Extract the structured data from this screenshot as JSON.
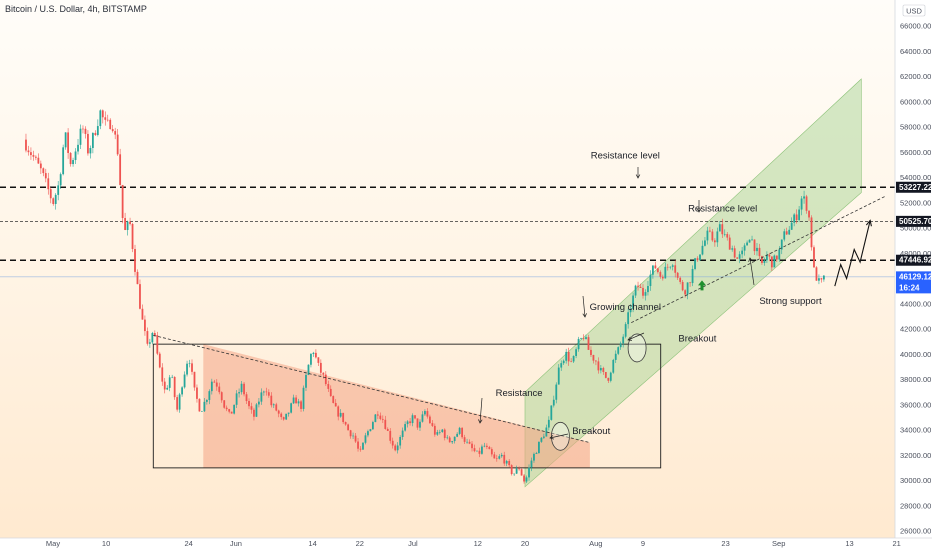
{
  "chart_data": {
    "type": "candlestick",
    "title": "Bitcoin / U.S. Dollar, 4h, BITSTAMP",
    "currency_label": "USD",
    "y_ticks": [
      26000,
      28000,
      30000,
      32000,
      34000,
      36000,
      38000,
      40000,
      42000,
      44000,
      46000,
      48000,
      50000,
      52000,
      54000,
      56000,
      58000,
      60000,
      62000,
      64000,
      66000
    ],
    "ylim": [
      26000,
      67500
    ],
    "x_ticks": [
      {
        "label": "May",
        "day": 0
      },
      {
        "label": "10",
        "day": 9
      },
      {
        "label": "24",
        "day": 23
      },
      {
        "label": "Jun",
        "day": 31
      },
      {
        "label": "14",
        "day": 44
      },
      {
        "label": "22",
        "day": 52
      },
      {
        "label": "Jul",
        "day": 61
      },
      {
        "label": "12",
        "day": 72
      },
      {
        "label": "20",
        "day": 80
      },
      {
        "label": "Aug",
        "day": 92
      },
      {
        "label": "9",
        "day": 100
      },
      {
        "label": "23",
        "day": 114
      },
      {
        "label": "Sep",
        "day": 123
      },
      {
        "label": "13",
        "day": 135
      },
      {
        "label": "21",
        "day": 143
      }
    ],
    "xlim": [
      -5,
      149
    ],
    "price_path": [
      [
        -5,
        57000
      ],
      [
        -2,
        54500
      ],
      [
        0,
        52000
      ],
      [
        1,
        53500
      ],
      [
        2,
        57500
      ],
      [
        3,
        55000
      ],
      [
        4,
        56500
      ],
      [
        5,
        58000
      ],
      [
        6,
        56000
      ],
      [
        7,
        57500
      ],
      [
        8,
        59200
      ],
      [
        9,
        58000
      ],
      [
        10,
        58500
      ],
      [
        11,
        56000
      ],
      [
        12,
        49500
      ],
      [
        13,
        50500
      ],
      [
        14,
        46500
      ],
      [
        15,
        43000
      ],
      [
        16,
        40500
      ],
      [
        17,
        42000
      ],
      [
        18,
        39000
      ],
      [
        19,
        37000
      ],
      [
        20,
        38500
      ],
      [
        21,
        35500
      ],
      [
        22,
        38000
      ],
      [
        23,
        40000
      ],
      [
        24,
        37000
      ],
      [
        25,
        35500
      ],
      [
        26,
        36500
      ],
      [
        27,
        38000
      ],
      [
        28,
        37500
      ],
      [
        29,
        36000
      ],
      [
        30,
        35000
      ],
      [
        31,
        36500
      ],
      [
        32,
        37500
      ],
      [
        33,
        36000
      ],
      [
        34,
        35000
      ],
      [
        35,
        36500
      ],
      [
        36,
        37500
      ],
      [
        37,
        36000
      ],
      [
        38,
        35500
      ],
      [
        39,
        34500
      ],
      [
        40,
        35500
      ],
      [
        41,
        36500
      ],
      [
        42,
        35800
      ],
      [
        43,
        38500
      ],
      [
        44,
        40500
      ],
      [
        45,
        39000
      ],
      [
        46,
        38000
      ],
      [
        47,
        36500
      ],
      [
        48,
        35500
      ],
      [
        49,
        35000
      ],
      [
        50,
        34000
      ],
      [
        51,
        33500
      ],
      [
        52,
        32000
      ],
      [
        53,
        33500
      ],
      [
        54,
        34500
      ],
      [
        55,
        35500
      ],
      [
        56,
        34800
      ],
      [
        57,
        33500
      ],
      [
        58,
        32500
      ],
      [
        59,
        33500
      ],
      [
        60,
        34500
      ],
      [
        61,
        35000
      ],
      [
        62,
        34200
      ],
      [
        63,
        35500
      ],
      [
        64,
        34500
      ],
      [
        65,
        33500
      ],
      [
        66,
        34000
      ],
      [
        67,
        33000
      ],
      [
        68,
        33500
      ],
      [
        69,
        34000
      ],
      [
        70,
        33000
      ],
      [
        71,
        32500
      ],
      [
        72,
        32000
      ],
      [
        73,
        32800
      ],
      [
        74,
        32200
      ],
      [
        75,
        31500
      ],
      [
        76,
        32000
      ],
      [
        77,
        31200
      ],
      [
        78,
        30500
      ],
      [
        79,
        31000
      ],
      [
        80,
        29800
      ],
      [
        81,
        31500
      ],
      [
        82,
        32500
      ],
      [
        83,
        33500
      ],
      [
        84,
        34500
      ],
      [
        85,
        37000
      ],
      [
        86,
        39500
      ],
      [
        87,
        40000
      ],
      [
        88,
        39200
      ],
      [
        89,
        40800
      ],
      [
        90,
        41500
      ],
      [
        91,
        40000
      ],
      [
        92,
        39500
      ],
      [
        93,
        38500
      ],
      [
        94,
        38000
      ],
      [
        95,
        39500
      ],
      [
        96,
        40500
      ],
      [
        97,
        42000
      ],
      [
        98,
        44000
      ],
      [
        99,
        45500
      ],
      [
        100,
        44800
      ],
      [
        101,
        46000
      ],
      [
        102,
        47000
      ],
      [
        103,
        46200
      ],
      [
        104,
        46800
      ],
      [
        105,
        47500
      ],
      [
        106,
        45800
      ],
      [
        107,
        45000
      ],
      [
        108,
        46000
      ],
      [
        109,
        47500
      ],
      [
        110,
        48500
      ],
      [
        111,
        49500
      ],
      [
        112,
        49000
      ],
      [
        113,
        50000
      ],
      [
        114,
        49200
      ],
      [
        115,
        48500
      ],
      [
        116,
        47500
      ],
      [
        117,
        48000
      ],
      [
        118,
        49500
      ],
      [
        119,
        48500
      ],
      [
        120,
        47000
      ],
      [
        121,
        47800
      ],
      [
        122,
        47200
      ],
      [
        123,
        48000
      ],
      [
        124,
        49500
      ],
      [
        125,
        50200
      ],
      [
        126,
        51000
      ],
      [
        127,
        52500
      ],
      [
        128,
        51500
      ],
      [
        129,
        46500
      ],
      [
        130,
        45500
      ],
      [
        131,
        46129
      ]
    ],
    "projection_path": [
      [
        132.5,
        45400
      ],
      [
        133.5,
        47100
      ],
      [
        134.5,
        46000
      ],
      [
        135.8,
        48300
      ],
      [
        136.8,
        47300
      ],
      [
        138.5,
        50600
      ]
    ],
    "price_levels": [
      {
        "value": 53227.22,
        "label": "53227.22",
        "style": "dashed-bold"
      },
      {
        "value": 50525.7,
        "label": "50525.70",
        "style": "dashed-thin"
      },
      {
        "value": 47446.92,
        "label": "47446.92",
        "style": "dashed-bold"
      },
      {
        "value": 46129.12,
        "label": "46129.12",
        "style": "current"
      }
    ],
    "current_price": {
      "value": "46129.12",
      "countdown": "16:24"
    },
    "annotations": [
      {
        "text": "Resistance level",
        "day": 97,
        "value": 55500
      },
      {
        "text": "Resistance level",
        "day": 113.5,
        "value": 51300
      },
      {
        "text": "Growing channel",
        "day": 97,
        "value": 43500
      },
      {
        "text": "Strong support",
        "day": 125,
        "value": 44000
      },
      {
        "text": "Breakout",
        "day": 106,
        "value": 41000
      },
      {
        "text": "Resistance",
        "day": 79,
        "value": 36700
      },
      {
        "text": "Breakout",
        "day": 88,
        "value": 33700
      }
    ],
    "channel": {
      "lower_start": [
        80,
        29500
      ],
      "lower_end": [
        137,
        52800
      ],
      "upper_start": [
        80,
        37000
      ],
      "upper_end": [
        137,
        61800
      ]
    },
    "box": {
      "day_start": 17,
      "day_end": 103,
      "value_low": 31000,
      "value_high": 40800
    },
    "descending_line": {
      "start": [
        17,
        41500
      ],
      "end": [
        91,
        33000
      ]
    },
    "rising_trendline": {
      "start": [
        98,
        42500
      ],
      "end": [
        141,
        52500
      ]
    },
    "breakout_circles": [
      [
        86,
        33500
      ],
      [
        99,
        40500
      ]
    ],
    "support_arrow": {
      "day": 110,
      "value": 45300
    }
  }
}
